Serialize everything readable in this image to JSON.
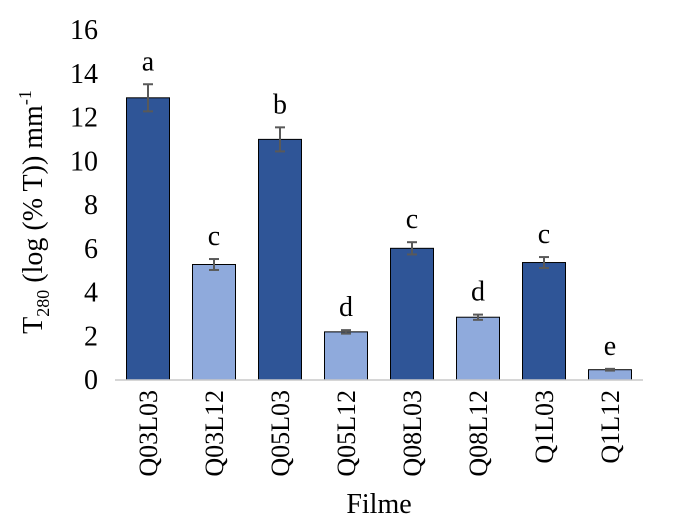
{
  "chart_data": {
    "type": "bar",
    "title": "",
    "categories": [
      "Q03L03",
      "Q03L12",
      "Q05L03",
      "Q05L12",
      "Q08L03",
      "Q08L12",
      "Q1L03",
      "Q1L12"
    ],
    "values": [
      12.9,
      5.28,
      11.0,
      2.2,
      6.02,
      2.87,
      5.37,
      0.47
    ],
    "errors": [
      0.62,
      0.25,
      0.55,
      0.08,
      0.28,
      0.12,
      0.25,
      0.04
    ],
    "significance_letters": [
      "a",
      "c",
      "b",
      "d",
      "c",
      "d",
      "c",
      "e"
    ],
    "bar_colors": [
      "#2F5597",
      "#8FAADC",
      "#2F5597",
      "#8FAADC",
      "#2F5597",
      "#8FAADC",
      "#2F5597",
      "#8FAADC"
    ],
    "error_bar_color": "#595959",
    "xlabel": "Filme",
    "ylabel": {
      "main": "T",
      "subscript": "280",
      "rest": " (log (% T)) mm",
      "superscript": "-1"
    },
    "ylim": [
      0,
      16
    ],
    "yticks": [
      "0",
      "2",
      "4",
      "6",
      "8",
      "10",
      "12",
      "14",
      "16"
    ],
    "grid": false,
    "legend": "none"
  }
}
